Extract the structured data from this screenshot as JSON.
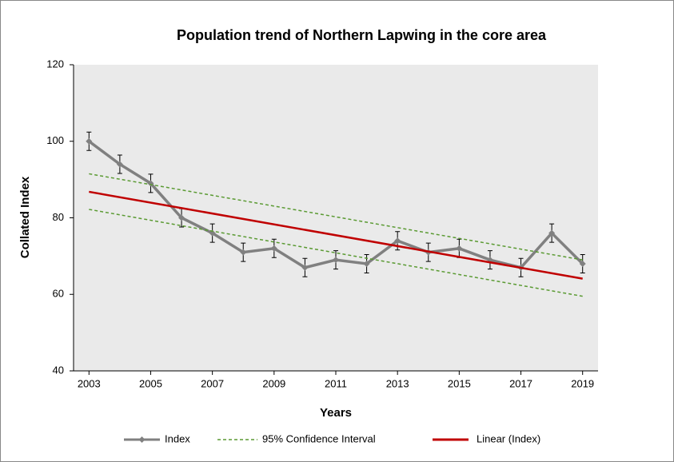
{
  "chart_data": {
    "type": "line",
    "title": "Population trend of Northern Lapwing in the core area",
    "x_label": "Years",
    "y_label": "Collated Index",
    "xlim": [
      2002.5,
      2019.5
    ],
    "xticks": [
      2003,
      2005,
      2007,
      2009,
      2011,
      2013,
      2015,
      2017,
      2019
    ],
    "ylim": [
      40,
      120
    ],
    "yticks": [
      40,
      60,
      80,
      100,
      120
    ],
    "plot_background": "#eaeaea",
    "series": [
      {
        "name": "Index",
        "color": "#808080",
        "style": "solid-markers",
        "x": [
          2003,
          2004,
          2005,
          2006,
          2007,
          2008,
          2009,
          2010,
          2011,
          2012,
          2013,
          2014,
          2015,
          2016,
          2017,
          2018,
          2019
        ],
        "values": [
          100,
          94,
          89,
          80,
          76,
          71,
          72,
          67,
          69,
          68,
          74,
          71,
          72,
          69,
          67,
          76,
          68
        ],
        "errors": [
          2.4,
          2.4,
          2.4,
          2.4,
          2.4,
          2.4,
          2.4,
          2.4,
          2.4,
          2.4,
          2.4,
          2.4,
          2.4,
          2.4,
          2.4,
          2.4,
          2.4
        ]
      },
      {
        "name": "95% Confidence Interval",
        "color": "#5a9a32",
        "style": "band-dashed",
        "x": [
          2003,
          2019
        ],
        "upper": [
          91.5,
          69
        ],
        "lower": [
          82.2,
          59.5
        ]
      },
      {
        "name": "Linear (Index)",
        "color": "#c00000",
        "style": "solid",
        "x": [
          2003,
          2019
        ],
        "values": [
          86.8,
          64.1
        ]
      }
    ]
  }
}
